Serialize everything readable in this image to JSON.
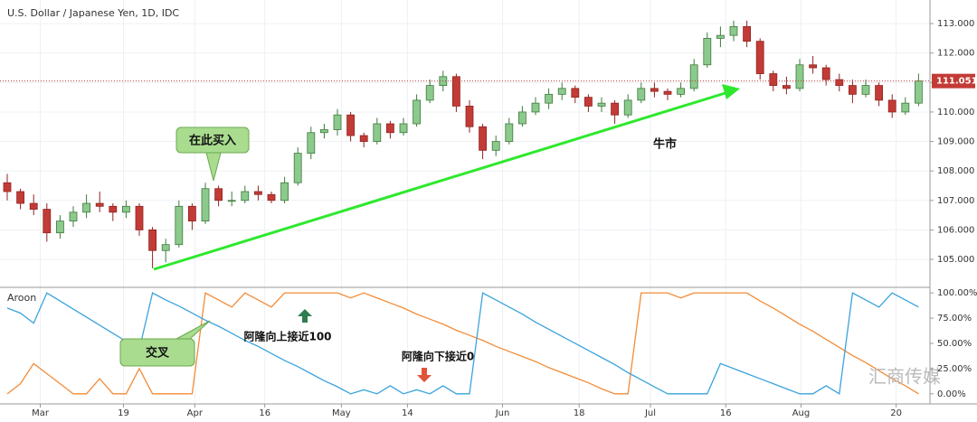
{
  "chart_data": [
    {
      "type": "candlestick",
      "title": "U.S. Dollar / Japanese Yen, 1D, IDC",
      "ylim": [
        104.05,
        113.8
      ],
      "yticks": [
        {
          "value": 105,
          "label": "105.000"
        },
        {
          "value": 106,
          "label": "106.000"
        },
        {
          "value": 107,
          "label": "107.000"
        },
        {
          "value": 108,
          "label": "108.000"
        },
        {
          "value": 109,
          "label": "109.000"
        },
        {
          "value": 110,
          "label": "110.000"
        },
        {
          "value": 111,
          "label": "111.000"
        },
        {
          "value": 112,
          "label": "112.000"
        },
        {
          "value": 113,
          "label": "113.000"
        }
      ],
      "grid": true,
      "up_color": "#8cc98c",
      "down_color": "#c33b36",
      "last_price": 111.051,
      "annotations": [
        "在此买入",
        "牛市",
        "交叉",
        "阿隆向上接近100",
        "阿隆向下接近0"
      ],
      "watermark": "汇商传媒",
      "candles": [
        [
          107.6,
          107.9,
          107.0,
          107.3
        ],
        [
          107.3,
          107.4,
          106.7,
          106.9
        ],
        [
          106.9,
          107.2,
          106.5,
          106.7
        ],
        [
          106.7,
          106.9,
          105.6,
          105.9
        ],
        [
          105.9,
          106.5,
          105.7,
          106.3
        ],
        [
          106.3,
          106.8,
          106.1,
          106.6
        ],
        [
          106.6,
          107.2,
          106.4,
          106.9
        ],
        [
          106.9,
          107.3,
          106.6,
          106.8
        ],
        [
          106.8,
          106.9,
          106.3,
          106.6
        ],
        [
          106.6,
          107.0,
          106.4,
          106.8
        ],
        [
          106.8,
          106.9,
          105.8,
          106.0
        ],
        [
          106.0,
          106.1,
          104.7,
          105.3
        ],
        [
          105.3,
          105.7,
          104.9,
          105.5
        ],
        [
          105.5,
          107.0,
          105.4,
          106.8
        ],
        [
          106.8,
          106.9,
          106.0,
          106.3
        ],
        [
          106.3,
          107.6,
          106.2,
          107.4
        ],
        [
          107.4,
          107.5,
          106.8,
          107.0
        ],
        [
          107.0,
          107.3,
          106.8,
          107.0
        ],
        [
          107.0,
          107.5,
          106.9,
          107.3
        ],
        [
          107.3,
          107.5,
          107.0,
          107.2
        ],
        [
          107.2,
          107.3,
          106.9,
          107.0
        ],
        [
          107.0,
          107.8,
          106.9,
          107.6
        ],
        [
          107.6,
          108.8,
          107.5,
          108.6
        ],
        [
          108.6,
          109.5,
          108.4,
          109.3
        ],
        [
          109.3,
          109.6,
          109.1,
          109.4
        ],
        [
          109.4,
          110.1,
          109.2,
          109.9
        ],
        [
          109.9,
          110.0,
          109.0,
          109.2
        ],
        [
          109.2,
          109.3,
          108.8,
          109.0
        ],
        [
          109.0,
          109.8,
          108.9,
          109.6
        ],
        [
          109.6,
          109.7,
          109.1,
          109.3
        ],
        [
          109.3,
          109.8,
          109.2,
          109.6
        ],
        [
          109.6,
          110.6,
          109.5,
          110.4
        ],
        [
          110.4,
          111.1,
          110.3,
          110.9
        ],
        [
          110.9,
          111.4,
          110.7,
          111.2
        ],
        [
          111.2,
          111.3,
          110.0,
          110.2
        ],
        [
          110.2,
          110.4,
          109.3,
          109.5
        ],
        [
          109.5,
          109.6,
          108.4,
          108.7
        ],
        [
          108.7,
          109.2,
          108.5,
          109.0
        ],
        [
          109.0,
          109.8,
          108.9,
          109.6
        ],
        [
          109.6,
          110.2,
          109.5,
          110.0
        ],
        [
          110.0,
          110.5,
          109.9,
          110.3
        ],
        [
          110.3,
          110.8,
          110.1,
          110.6
        ],
        [
          110.6,
          111.0,
          110.4,
          110.8
        ],
        [
          110.8,
          110.9,
          110.3,
          110.5
        ],
        [
          110.5,
          110.6,
          110.0,
          110.2
        ],
        [
          110.2,
          110.5,
          110.0,
          110.3
        ],
        [
          110.3,
          110.4,
          109.6,
          109.9
        ],
        [
          109.9,
          110.6,
          109.8,
          110.4
        ],
        [
          110.4,
          111.0,
          110.3,
          110.8
        ],
        [
          110.8,
          111.0,
          110.5,
          110.7
        ],
        [
          110.7,
          110.8,
          110.4,
          110.6
        ],
        [
          110.6,
          111.0,
          110.5,
          110.8
        ],
        [
          110.8,
          111.8,
          110.7,
          111.6
        ],
        [
          111.6,
          112.7,
          111.5,
          112.5
        ],
        [
          112.5,
          112.9,
          112.2,
          112.6
        ],
        [
          112.6,
          113.1,
          112.4,
          112.9
        ],
        [
          112.9,
          113.1,
          112.2,
          112.4
        ],
        [
          112.4,
          112.5,
          111.1,
          111.3
        ],
        [
          111.3,
          111.4,
          110.7,
          110.9
        ],
        [
          110.9,
          111.2,
          110.6,
          110.8
        ],
        [
          110.8,
          111.8,
          110.7,
          111.6
        ],
        [
          111.6,
          111.9,
          111.3,
          111.5
        ],
        [
          111.5,
          111.6,
          110.9,
          111.1
        ],
        [
          111.1,
          111.3,
          110.7,
          110.9
        ],
        [
          110.9,
          111.1,
          110.3,
          110.6
        ],
        [
          110.6,
          111.1,
          110.5,
          110.9
        ],
        [
          110.9,
          111.0,
          110.2,
          110.4
        ],
        [
          110.4,
          110.6,
          109.8,
          110.0
        ],
        [
          110.0,
          110.5,
          109.9,
          110.3
        ],
        [
          110.3,
          111.3,
          110.2,
          111.05
        ]
      ]
    },
    {
      "type": "line",
      "title": "Aroon",
      "ylim": [
        -10,
        105.5
      ],
      "yticks": [
        {
          "value": 0,
          "label": "0.00%"
        },
        {
          "value": 25,
          "label": "25.00%"
        },
        {
          "value": 50,
          "label": "50.00%"
        },
        {
          "value": 75,
          "label": "75.00%"
        },
        {
          "value": 100,
          "label": "100.00%"
        }
      ],
      "xticks": [
        {
          "value": 2.5,
          "label": "Mar"
        },
        {
          "value": 8.8,
          "label": "19"
        },
        {
          "value": 14.2,
          "label": "Apr"
        },
        {
          "value": 19.5,
          "label": "16"
        },
        {
          "value": 25.3,
          "label": "May"
        },
        {
          "value": 30.3,
          "label": "14"
        },
        {
          "value": 37.5,
          "label": "Jun"
        },
        {
          "value": 43.3,
          "label": "18"
        },
        {
          "value": 48.7,
          "label": "Jul"
        },
        {
          "value": 54.4,
          "label": "16"
        },
        {
          "value": 60.1,
          "label": "Aug"
        },
        {
          "value": 67.3,
          "label": "20"
        }
      ],
      "series": [
        {
          "color": "#f28c38",
          "values": [
            0,
            10,
            30,
            20,
            10,
            0,
            0,
            15,
            0,
            0,
            25,
            0,
            0,
            0,
            0,
            100,
            93,
            86,
            100,
            93,
            86,
            100,
            100,
            100,
            100,
            100,
            95,
            100,
            95,
            90,
            85,
            79,
            74,
            69,
            63,
            58,
            53,
            47,
            42,
            37,
            32,
            26,
            21,
            16,
            11,
            5,
            0,
            0,
            100,
            100,
            100,
            95,
            100,
            100,
            100,
            100,
            100,
            92,
            85,
            77,
            69,
            62,
            54,
            46,
            38,
            31,
            23,
            15,
            8,
            0
          ]
        },
        {
          "color": "#3aa3dc",
          "values": [
            85,
            80,
            70,
            100,
            92,
            84,
            76,
            68,
            60,
            52,
            44,
            100,
            93,
            87,
            80,
            73,
            67,
            60,
            53,
            47,
            40,
            33,
            27,
            20,
            13,
            7,
            0,
            4,
            0,
            8,
            0,
            4,
            0,
            8,
            0,
            0,
            100,
            93,
            86,
            79,
            71,
            64,
            57,
            50,
            43,
            36,
            29,
            21,
            14,
            7,
            0,
            0,
            0,
            0,
            30,
            25,
            20,
            15,
            10,
            5,
            0,
            0,
            8,
            0,
            100,
            93,
            86,
            100,
            93,
            86
          ]
        }
      ]
    }
  ]
}
